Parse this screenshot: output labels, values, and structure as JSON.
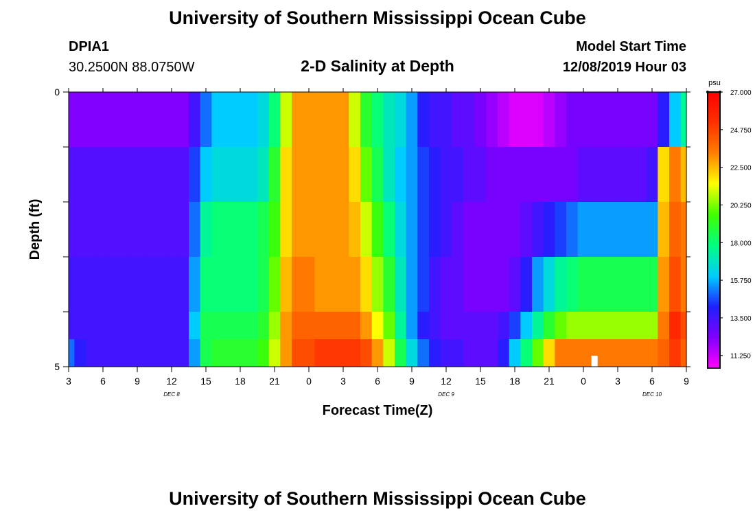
{
  "header": {
    "title": "University of Southern Mississippi Ocean Cube",
    "station": "DPIA1",
    "coords": "30.2500N 88.0750W",
    "subtitle": "2-D Salinity at Depth",
    "model_label": "Model Start Time",
    "model_time": "12/08/2019 Hour 03"
  },
  "footer": {
    "title": "University of Southern Mississippi Ocean Cube"
  },
  "chart_data": {
    "type": "heatmap",
    "title": "2-D Salinity at Depth",
    "xlabel": "Forecast Time(Z)",
    "ylabel": "Depth (ft)",
    "units": "psu",
    "y_ticks": [
      "0",
      "5"
    ],
    "ylim": [
      0,
      5
    ],
    "x_tick_labels": [
      "3",
      "6",
      "9",
      "12",
      "15",
      "18",
      "21",
      "0",
      "3",
      "6",
      "9",
      "12",
      "15",
      "18",
      "21",
      "0",
      "3",
      "6",
      "9"
    ],
    "day_labels": [
      "DEC 8",
      "DEC 9",
      "DEC 10"
    ],
    "hours_since_start": [
      0,
      1,
      2,
      3,
      4,
      5,
      6,
      7,
      8,
      9,
      10,
      11,
      12,
      13,
      14,
      15,
      16,
      17,
      18,
      19,
      20,
      21,
      22,
      23,
      24,
      25,
      26,
      27,
      28,
      29,
      30,
      31,
      32,
      33,
      34,
      35,
      36,
      37,
      38,
      39,
      40,
      41,
      42,
      43,
      44,
      45,
      46,
      47,
      48,
      49,
      50,
      51,
      52,
      53,
      54
    ],
    "depth_layers": [
      "0-1",
      "1-2",
      "2-3",
      "3-4",
      "4-4.5",
      "4.5-5"
    ],
    "salinity": [
      [
        12.3,
        12.3,
        12.3,
        12.3,
        12.3,
        12.3,
        12.3,
        12.3,
        12.3,
        12.3,
        12.3,
        13.5,
        15.0,
        16.0,
        16.0,
        16.0,
        16.0,
        16.5,
        18.0,
        21.0,
        23.0,
        23.0,
        23.0,
        23.0,
        23.0,
        21.0,
        19.0,
        18.0,
        17.0,
        16.5,
        15.5,
        14.0,
        13.5,
        13.5,
        13.0,
        13.0,
        12.5,
        12.0,
        11.5,
        11.0,
        11.0,
        11.0,
        11.5,
        12.0,
        12.5,
        12.5,
        12.5,
        12.5,
        12.5,
        12.5,
        12.5,
        12.5,
        14.0,
        16.0,
        17.5
      ],
      [
        13.2,
        13.2,
        13.2,
        13.2,
        13.2,
        13.2,
        13.2,
        13.2,
        13.2,
        13.2,
        13.2,
        14.5,
        16.0,
        16.5,
        16.5,
        16.5,
        16.5,
        17.0,
        19.0,
        22.0,
        23.0,
        23.0,
        23.0,
        23.0,
        23.0,
        22.0,
        20.0,
        18.5,
        17.0,
        16.0,
        15.5,
        14.5,
        14.0,
        13.5,
        13.5,
        13.0,
        13.0,
        12.5,
        12.5,
        12.5,
        12.5,
        12.5,
        12.5,
        12.5,
        12.5,
        13.0,
        13.0,
        13.0,
        13.0,
        13.0,
        13.0,
        13.5,
        22.0,
        23.5,
        22.5
      ],
      [
        13.2,
        13.2,
        13.2,
        13.2,
        13.2,
        13.2,
        13.2,
        13.2,
        13.2,
        13.2,
        13.2,
        15.0,
        17.5,
        18.0,
        18.0,
        18.0,
        18.0,
        18.5,
        19.5,
        22.0,
        23.0,
        23.0,
        23.0,
        23.0,
        23.0,
        22.5,
        21.0,
        19.5,
        18.0,
        16.5,
        15.5,
        14.5,
        14.0,
        13.5,
        13.0,
        12.5,
        12.5,
        12.5,
        12.5,
        12.5,
        13.0,
        13.5,
        14.0,
        14.5,
        15.0,
        15.5,
        15.5,
        15.5,
        15.5,
        15.5,
        15.5,
        15.5,
        22.5,
        24.0,
        23.5
      ],
      [
        13.5,
        13.5,
        13.5,
        13.5,
        13.5,
        13.5,
        13.5,
        13.5,
        13.5,
        13.5,
        13.5,
        15.5,
        18.0,
        18.0,
        18.0,
        18.0,
        18.0,
        18.5,
        20.0,
        22.5,
        23.5,
        23.5,
        23.0,
        23.0,
        23.0,
        23.0,
        22.0,
        20.5,
        19.0,
        17.0,
        15.5,
        14.5,
        13.5,
        13.0,
        13.0,
        12.5,
        12.5,
        12.5,
        12.5,
        13.0,
        14.0,
        15.5,
        16.5,
        17.5,
        18.0,
        18.5,
        18.5,
        18.5,
        18.5,
        18.5,
        18.5,
        18.5,
        23.0,
        24.5,
        23.5
      ],
      [
        13.5,
        13.5,
        13.5,
        13.5,
        13.5,
        13.5,
        13.5,
        13.5,
        13.5,
        13.5,
        13.5,
        16.0,
        18.5,
        18.5,
        18.5,
        18.5,
        18.5,
        19.0,
        20.5,
        23.0,
        24.0,
        24.0,
        24.0,
        24.0,
        24.0,
        24.0,
        23.0,
        21.5,
        20.0,
        17.5,
        15.5,
        14.0,
        13.5,
        13.0,
        13.0,
        13.0,
        13.0,
        13.0,
        13.5,
        14.5,
        16.0,
        17.5,
        19.0,
        20.0,
        20.5,
        20.5,
        20.5,
        20.5,
        20.5,
        20.5,
        20.5,
        20.5,
        23.5,
        25.5,
        24.5
      ],
      [
        15.0,
        14.0,
        13.5,
        13.5,
        13.5,
        13.5,
        13.5,
        13.5,
        13.5,
        13.5,
        13.5,
        15.5,
        18.5,
        19.0,
        19.0,
        19.0,
        19.0,
        19.5,
        21.0,
        23.0,
        24.5,
        24.5,
        25.0,
        25.0,
        25.0,
        25.0,
        24.5,
        23.0,
        21.0,
        18.5,
        16.5,
        15.0,
        14.0,
        13.5,
        13.5,
        13.0,
        13.0,
        13.0,
        14.0,
        16.0,
        18.0,
        20.0,
        22.0,
        23.5,
        23.5,
        23.5,
        23.5,
        23.5,
        23.5,
        23.5,
        23.5,
        23.5,
        24.0,
        25.0,
        24.0
      ]
    ],
    "colorbar": {
      "ticks": [
        "27.000",
        "24.750",
        "22.500",
        "20.250",
        "18.000",
        "15.750",
        "13.500",
        "11.250"
      ],
      "vmin": 10.5,
      "vmax": 27.0,
      "colors": [
        "#ff00ff",
        "#8000ff",
        "#2020ff",
        "#00ccff",
        "#00ff80",
        "#40ff00",
        "#ffff00",
        "#ff8000",
        "#ff3000",
        "#ff0000"
      ]
    },
    "annotation": "white marker near hour 46 in bottom layer"
  }
}
